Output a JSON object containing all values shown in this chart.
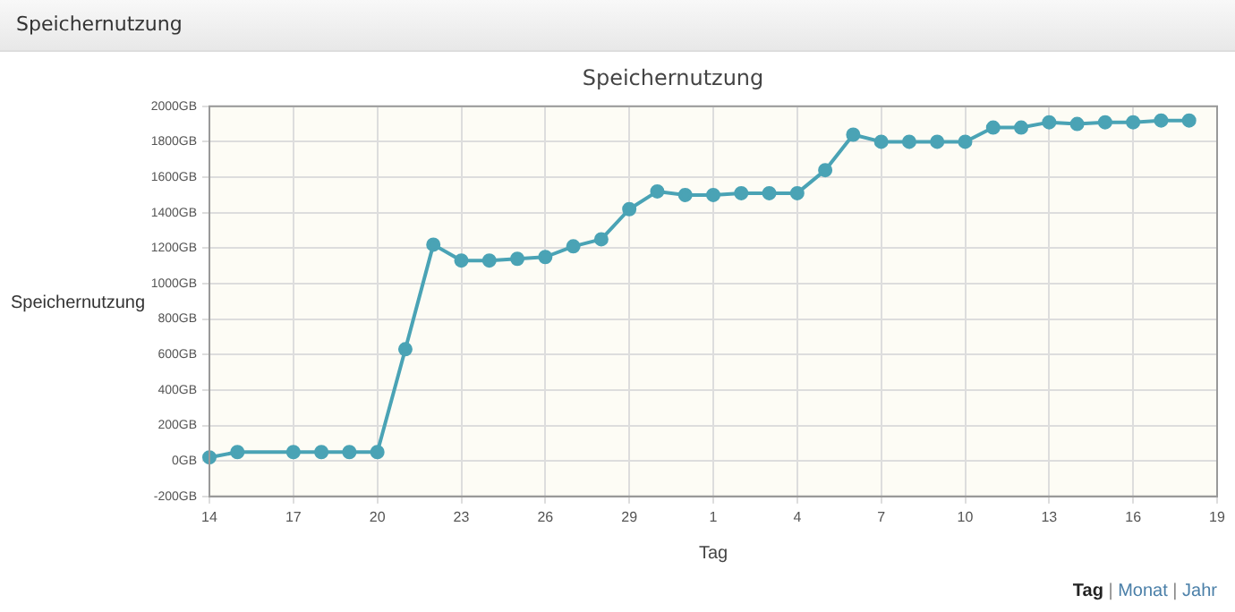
{
  "chart_data": {
    "type": "line",
    "title": "Speichernutzung",
    "xlabel": "Tag",
    "ylabel": "Speichernutzung",
    "annotations": [
      "Speichernutzung",
      "Tag | Monat | Jahr"
    ],
    "categories": [
      "14",
      null,
      null,
      "17",
      null,
      null,
      "20",
      null,
      null,
      "23",
      null,
      null,
      "26",
      null,
      null,
      "29",
      null,
      null,
      "1",
      null,
      null,
      "4",
      null,
      null,
      "7",
      null,
      null,
      "10",
      null,
      null,
      "13",
      null,
      null,
      "16",
      null,
      null,
      "19"
    ],
    "series": [
      {
        "color": "#4aa3b5",
        "values": [
          20,
          50,
          null,
          50,
          50,
          50,
          50,
          630,
          1220,
          1130,
          1130,
          1140,
          1150,
          1210,
          1250,
          1420,
          1520,
          1500,
          1500,
          1510,
          1510,
          1510,
          1640,
          1840,
          1800,
          1800,
          1800,
          1800,
          1880,
          1880,
          1910,
          1900,
          1910,
          1910,
          1920,
          1920,
          null
        ]
      }
    ],
    "ylim": [
      -200,
      2000
    ],
    "yticks": [
      {
        "value": -200,
        "label": "-200GB"
      },
      {
        "value": 0,
        "label": "0GB"
      },
      {
        "value": 200,
        "label": "200GB"
      },
      {
        "value": 400,
        "label": "400GB"
      },
      {
        "value": 600,
        "label": "600GB"
      },
      {
        "value": 800,
        "label": "800GB"
      },
      {
        "value": 1000,
        "label": "1000GB"
      },
      {
        "value": 1200,
        "label": "1200GB"
      },
      {
        "value": 1400,
        "label": "1400GB"
      },
      {
        "value": 1600,
        "label": "1600GB"
      },
      {
        "value": 1800,
        "label": "1800GB"
      },
      {
        "value": 2000,
        "label": "2000GB"
      }
    ],
    "grid": true,
    "marker": "circle",
    "line_style": "solid",
    "legend": false
  }
}
